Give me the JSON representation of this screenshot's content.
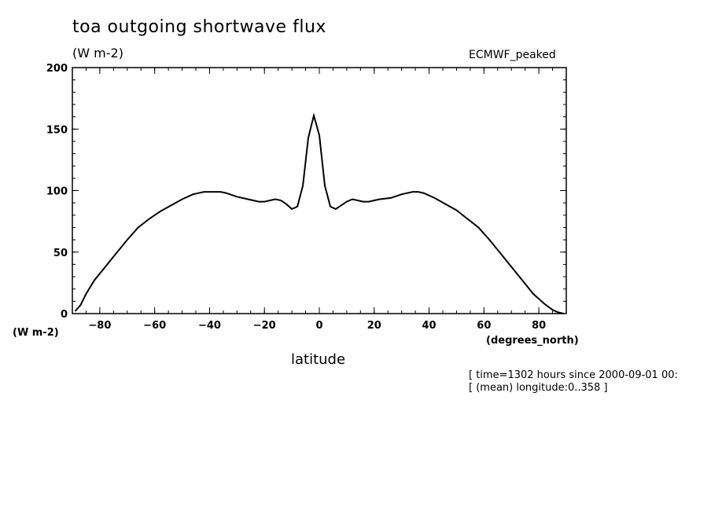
{
  "header": {
    "title": "toa outgoing shortwave flux",
    "units": "(W m-2)",
    "dataset": "ECMWF_peaked"
  },
  "axes": {
    "y_units": "(W m-2)",
    "x_units": "(degrees_north)",
    "x_label": "latitude"
  },
  "notes": {
    "line1": "[ time=1302 hours since 2000-09-01 00:",
    "line2": "[ (mean) longitude:0..358 ]"
  },
  "chart_data": {
    "type": "line",
    "title": "toa outgoing shortwave flux",
    "xlabel": "latitude",
    "ylabel": "(W m-2)",
    "xlim": [
      -90,
      90
    ],
    "ylim": [
      0,
      200
    ],
    "x_ticks": [
      -80,
      -60,
      -40,
      -20,
      0,
      20,
      40,
      60,
      80
    ],
    "y_ticks": [
      0,
      50,
      100,
      150,
      200
    ],
    "grid": false,
    "series": [
      {
        "name": "ECMWF_peaked",
        "x": [
          -89,
          -87,
          -85,
          -82,
          -78,
          -74,
          -70,
          -66,
          -62,
          -58,
          -54,
          -50,
          -46,
          -42,
          -38,
          -36,
          -34,
          -30,
          -26,
          -22,
          -20,
          -18,
          -16,
          -14,
          -12,
          -10,
          -8,
          -6,
          -4,
          -2,
          0,
          2,
          4,
          6,
          8,
          10,
          12,
          14,
          16,
          18,
          20,
          22,
          26,
          30,
          34,
          36,
          38,
          42,
          46,
          50,
          54,
          58,
          62,
          66,
          70,
          74,
          78,
          82,
          85,
          87,
          89
        ],
        "y": [
          2,
          7,
          16,
          27,
          38,
          49,
          60,
          70,
          77,
          83,
          88,
          93,
          97,
          99,
          99,
          99,
          98,
          95,
          93,
          91,
          91,
          92,
          93,
          92,
          89,
          85,
          87,
          104,
          143,
          161,
          145,
          104,
          87,
          85,
          88,
          91,
          93,
          92,
          91,
          91,
          92,
          93,
          94,
          97,
          99,
          99,
          98,
          94,
          89,
          84,
          77,
          70,
          60,
          49,
          38,
          27,
          16,
          8,
          3,
          1,
          0
        ]
      }
    ]
  }
}
